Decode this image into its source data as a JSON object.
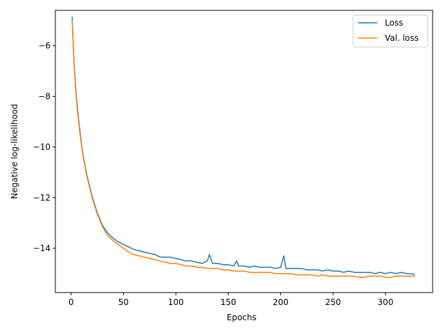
{
  "chart_data": {
    "type": "line",
    "title": "",
    "xlabel": "Epochs",
    "ylabel": "Negative log-likelihood",
    "xlim": [
      -15,
      345
    ],
    "ylim": [
      -15.75,
      -4.6
    ],
    "xticks": [
      0,
      50,
      100,
      150,
      200,
      250,
      300
    ],
    "yticks": [
      -14,
      -12,
      -10,
      -8,
      -6
    ],
    "xtick_labels": [
      "0",
      "50",
      "100",
      "150",
      "200",
      "250",
      "300"
    ],
    "ytick_labels": [
      "−14",
      "−12",
      "−10",
      "−8",
      "−6"
    ],
    "grid": false,
    "legend_position": "top-right",
    "series": [
      {
        "name": "Loss",
        "color": "#1f77b4",
        "x": [
          1,
          2,
          3,
          4,
          5,
          6,
          8,
          10,
          12,
          15,
          18,
          20,
          25,
          30,
          35,
          40,
          45,
          50,
          55,
          60,
          65,
          70,
          75,
          80,
          85,
          90,
          95,
          100,
          105,
          110,
          115,
          120,
          125,
          130,
          132,
          135,
          140,
          145,
          150,
          155,
          158,
          160,
          165,
          170,
          175,
          180,
          185,
          190,
          195,
          200,
          203,
          205,
          210,
          215,
          220,
          225,
          230,
          235,
          240,
          245,
          250,
          255,
          260,
          265,
          270,
          275,
          280,
          285,
          290,
          295,
          300,
          305,
          310,
          315,
          320,
          325,
          328
        ],
        "y": [
          -4.85,
          -5.9,
          -6.8,
          -7.45,
          -8.0,
          -8.45,
          -9.2,
          -9.9,
          -10.45,
          -11.1,
          -11.6,
          -11.95,
          -12.6,
          -13.1,
          -13.4,
          -13.6,
          -13.75,
          -13.85,
          -13.95,
          -14.05,
          -14.1,
          -14.15,
          -14.2,
          -14.25,
          -14.35,
          -14.35,
          -14.35,
          -14.4,
          -14.45,
          -14.5,
          -14.5,
          -14.55,
          -14.6,
          -14.5,
          -14.25,
          -14.6,
          -14.6,
          -14.65,
          -14.65,
          -14.7,
          -14.5,
          -14.7,
          -14.7,
          -14.75,
          -14.7,
          -14.75,
          -14.75,
          -14.75,
          -14.8,
          -14.75,
          -14.3,
          -14.8,
          -14.8,
          -14.8,
          -14.8,
          -14.85,
          -14.85,
          -14.85,
          -14.9,
          -14.85,
          -14.9,
          -14.9,
          -14.95,
          -14.9,
          -14.95,
          -14.95,
          -14.95,
          -14.95,
          -15.0,
          -14.95,
          -15.0,
          -14.95,
          -15.0,
          -14.95,
          -15.0,
          -15.0,
          -15.05
        ]
      },
      {
        "name": "Val. loss",
        "color": "#ff7f0e",
        "x": [
          1,
          2,
          3,
          4,
          5,
          6,
          8,
          10,
          12,
          15,
          18,
          20,
          25,
          30,
          35,
          40,
          45,
          50,
          55,
          60,
          65,
          70,
          75,
          80,
          85,
          90,
          95,
          100,
          105,
          110,
          115,
          120,
          125,
          130,
          135,
          140,
          145,
          150,
          155,
          160,
          165,
          170,
          175,
          180,
          185,
          190,
          195,
          200,
          205,
          210,
          215,
          220,
          225,
          230,
          235,
          240,
          245,
          250,
          255,
          260,
          265,
          270,
          275,
          280,
          285,
          290,
          295,
          300,
          305,
          310,
          315,
          320,
          325,
          328
        ],
        "y": [
          -5.0,
          -6.0,
          -6.9,
          -7.55,
          -8.1,
          -8.55,
          -9.3,
          -9.95,
          -10.5,
          -11.15,
          -11.65,
          -12.0,
          -12.65,
          -13.15,
          -13.5,
          -13.7,
          -13.85,
          -14.0,
          -14.15,
          -14.25,
          -14.3,
          -14.35,
          -14.4,
          -14.45,
          -14.5,
          -14.55,
          -14.6,
          -14.6,
          -14.65,
          -14.7,
          -14.7,
          -14.75,
          -14.75,
          -14.8,
          -14.8,
          -14.8,
          -14.85,
          -14.85,
          -14.9,
          -14.9,
          -14.9,
          -14.95,
          -14.95,
          -14.95,
          -14.95,
          -14.95,
          -15.0,
          -15.0,
          -15.0,
          -15.0,
          -15.05,
          -15.05,
          -15.05,
          -15.05,
          -15.1,
          -15.05,
          -15.1,
          -15.1,
          -15.1,
          -15.1,
          -15.1,
          -15.1,
          -15.15,
          -15.15,
          -15.1,
          -15.1,
          -15.1,
          -15.15,
          -15.15,
          -15.1,
          -15.1,
          -15.1,
          -15.1,
          -15.1
        ]
      }
    ]
  }
}
